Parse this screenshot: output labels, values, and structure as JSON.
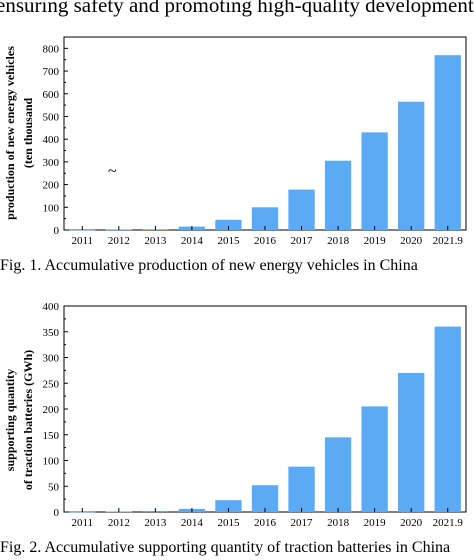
{
  "header_text": "ensuring safety and promoting high-quality development",
  "chart_data": [
    {
      "type": "bar",
      "categories": [
        "2011",
        "2012",
        "2013",
        "2014",
        "2015",
        "2016",
        "2017",
        "2018",
        "2019",
        "2020",
        "2021.9"
      ],
      "values": [
        1,
        2,
        3,
        15,
        45,
        100,
        178,
        305,
        430,
        565,
        770
      ],
      "ylabel": "production of new energy vehicles (ten thousand",
      "ylim": [
        0,
        850
      ],
      "yticks": [
        0,
        100,
        200,
        300,
        400,
        500,
        600,
        700,
        800
      ],
      "grid": false,
      "bar_color": "#5aaaf5",
      "annotation": "~",
      "caption": "Fig. 1. Accumulative production of new energy vehicles in China"
    },
    {
      "type": "bar",
      "categories": [
        "2011",
        "2012",
        "2013",
        "2014",
        "2015",
        "2016",
        "2017",
        "2018",
        "2019",
        "2020",
        "2021.9"
      ],
      "values": [
        0.5,
        1,
        2,
        6,
        23,
        52,
        88,
        145,
        205,
        270,
        360
      ],
      "ylabel": "supporting quantity of traction batteries (GWh)",
      "ylim": [
        0,
        400
      ],
      "yticks": [
        0,
        50,
        100,
        150,
        200,
        250,
        300,
        350,
        400
      ],
      "grid": false,
      "bar_color": "#5aaaf5",
      "caption": "Fig. 2. Accumulative supporting quantity of traction batteries in China"
    }
  ]
}
